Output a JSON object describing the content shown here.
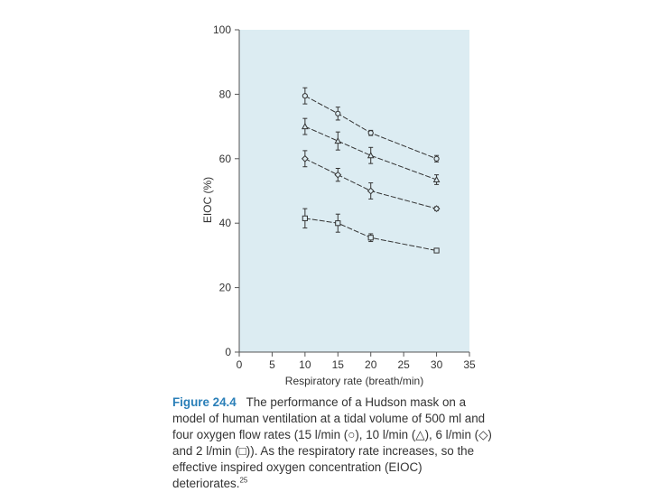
{
  "chart_data": {
    "type": "line",
    "xlabel": "Respiratory rate (breath/min)",
    "ylabel": "EIOC (%)",
    "xlim": [
      0,
      35
    ],
    "ylim": [
      0,
      100
    ],
    "xticks": [
      "0",
      "5",
      "10",
      "15",
      "20",
      "25",
      "30",
      "35"
    ],
    "yticks": [
      "0",
      "20",
      "40",
      "60",
      "80",
      "100"
    ],
    "grid": false,
    "background": "#dcecf2",
    "line_color": "#333333",
    "series": [
      {
        "marker": "circle",
        "x": [
          10,
          15,
          20,
          30
        ],
        "y": [
          79.5,
          74,
          68,
          60
        ],
        "err": [
          2.5,
          2,
          0.8,
          1
        ]
      },
      {
        "marker": "triangle",
        "x": [
          10,
          15,
          20,
          30
        ],
        "y": [
          70,
          65.5,
          61,
          53.5
        ],
        "err": [
          2.5,
          2.8,
          2.5,
          1.5
        ]
      },
      {
        "marker": "diamond",
        "x": [
          10,
          15,
          20,
          30
        ],
        "y": [
          60,
          55,
          50,
          44.5
        ],
        "err": [
          2.5,
          2,
          2.5,
          0.6
        ]
      },
      {
        "marker": "square",
        "x": [
          10,
          15,
          20,
          30
        ],
        "y": [
          41.5,
          40,
          35.5,
          31.5
        ],
        "err": [
          3,
          2.8,
          1.2,
          0.4
        ]
      }
    ]
  },
  "caption": {
    "figure_number": "Figure 24.4",
    "text": "The performance of a Hudson mask on a model of human ventilation at a tidal volume of 500 ml and four oxygen flow rates (15 l/min (○), 10 l/min (△), 6 l/min (◇) and 2 l/min (□)). As the respiratory rate increases, so the effective inspired oxygen concentration (EIOC) deteriorates.",
    "reference": "25"
  }
}
